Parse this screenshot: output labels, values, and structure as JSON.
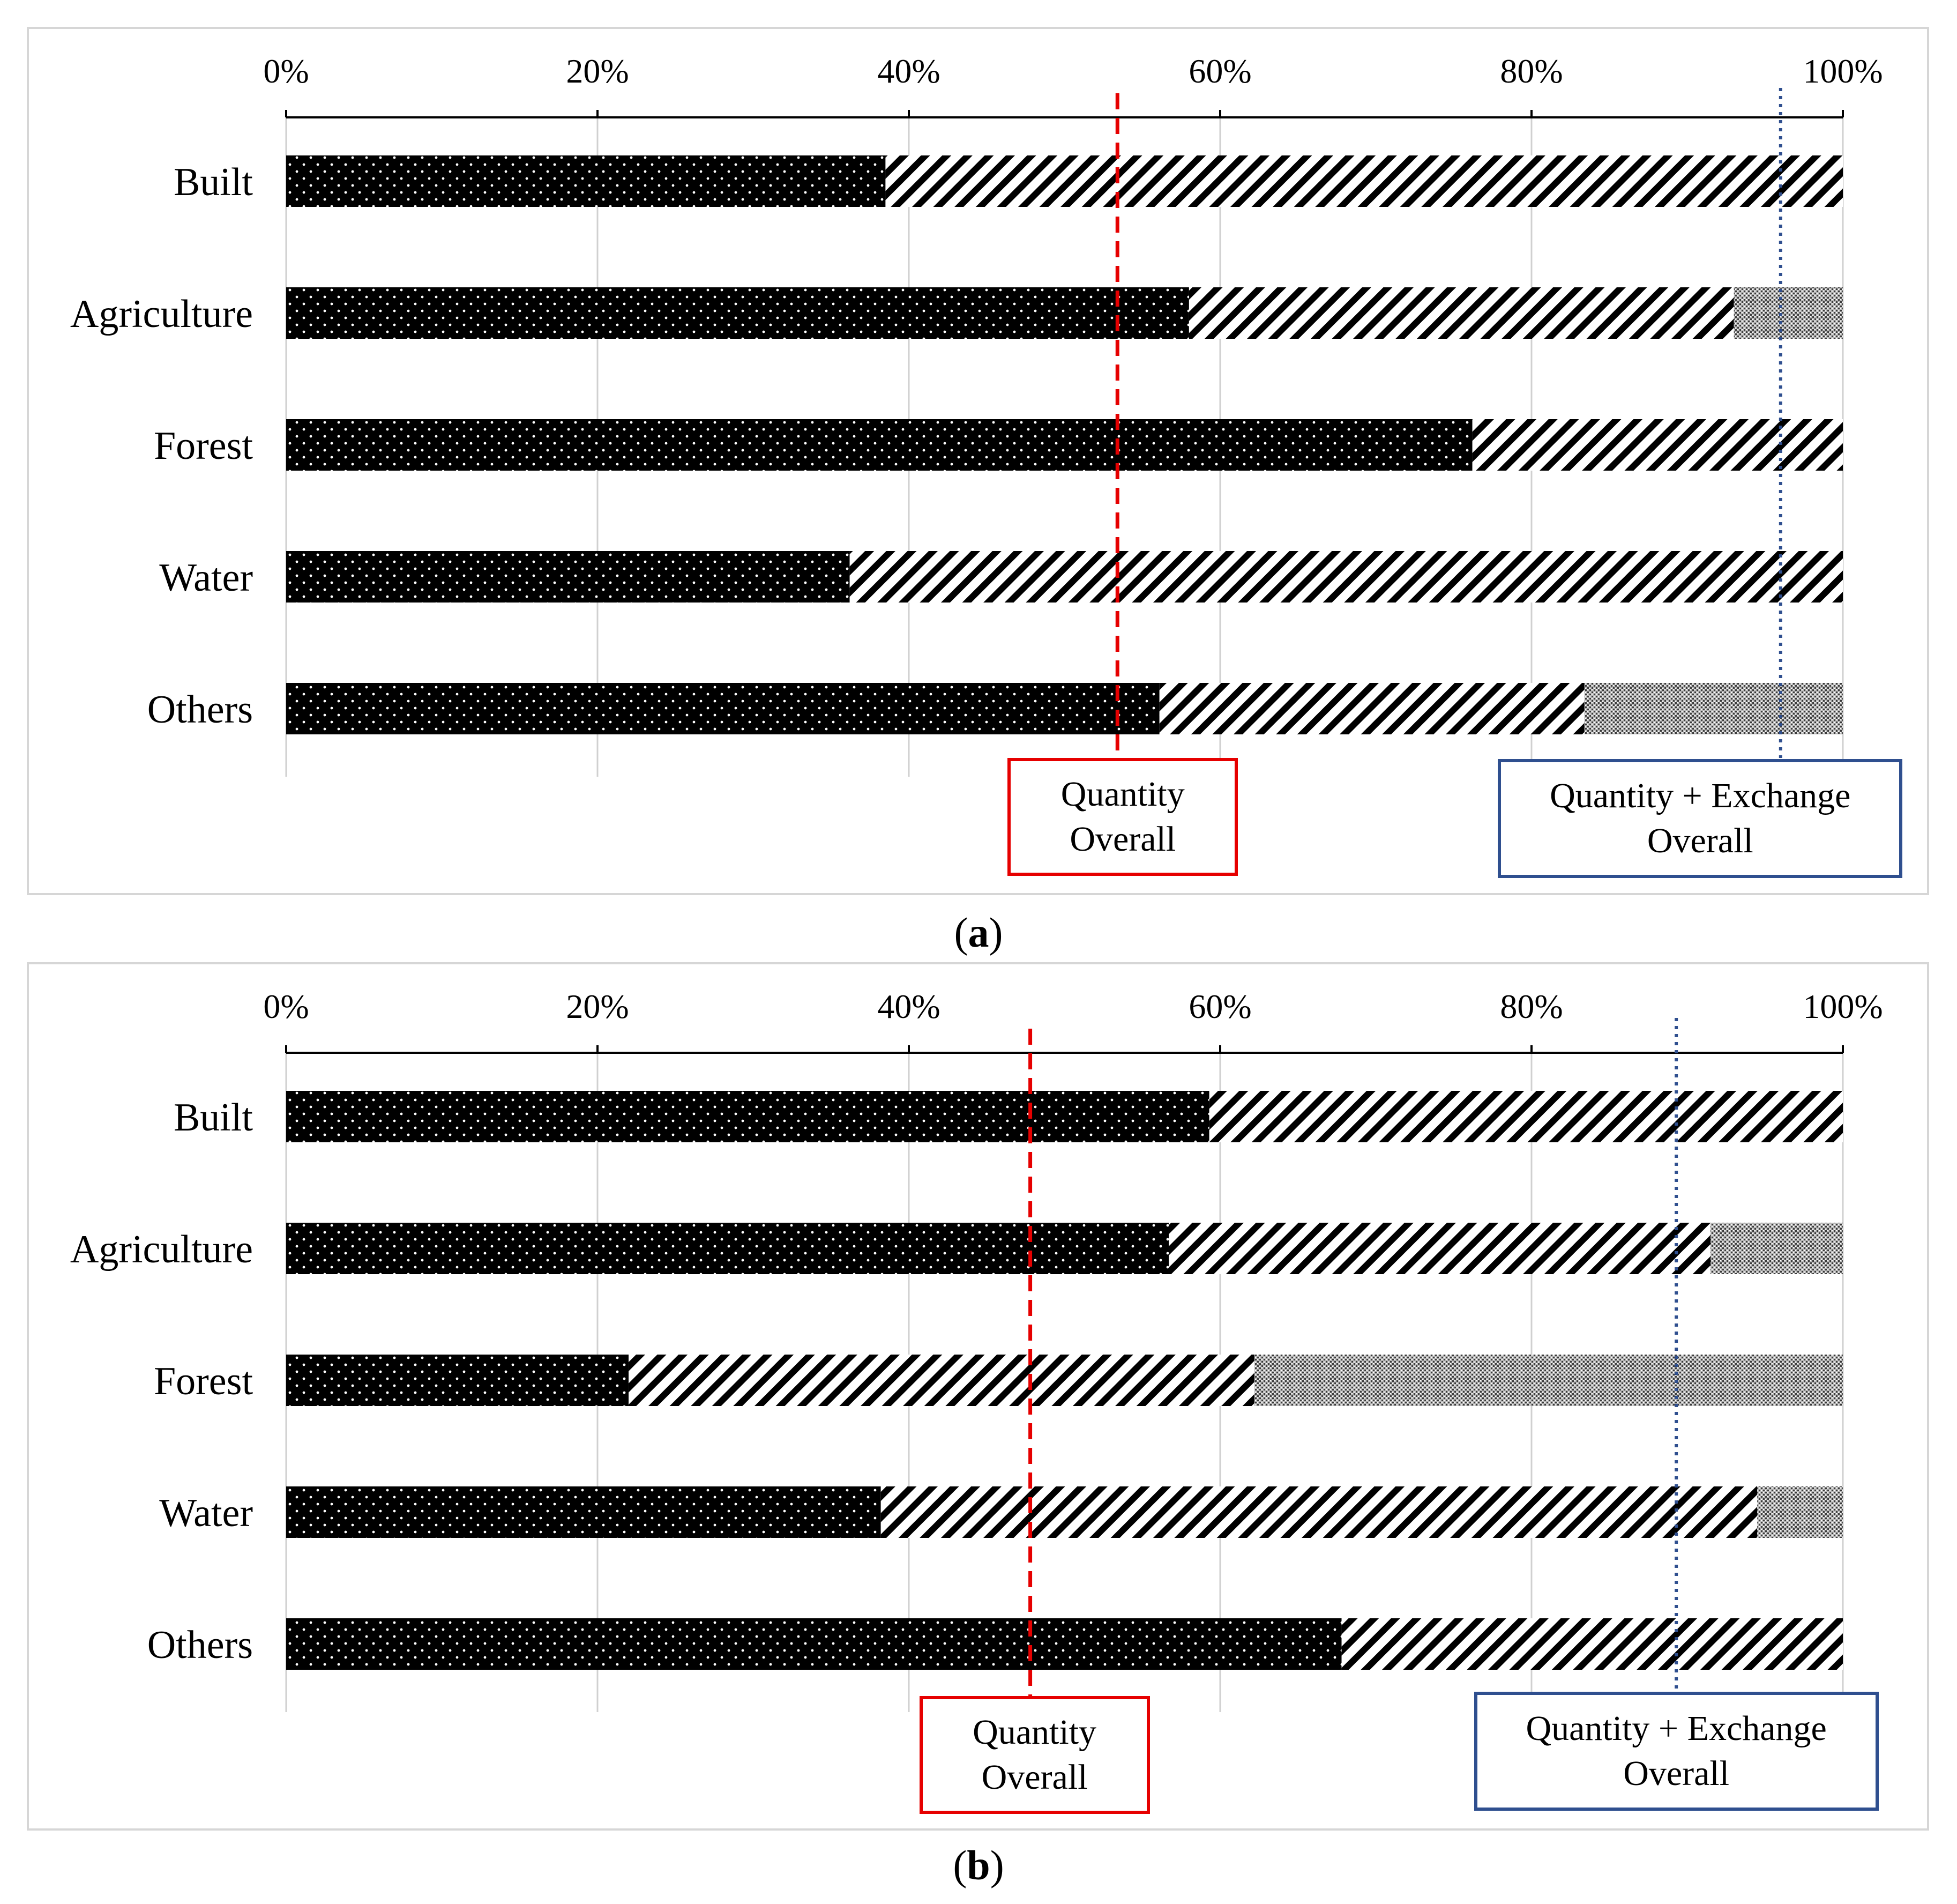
{
  "chart_data": [
    {
      "type": "bar",
      "orientation": "horizontal",
      "stacked": true,
      "caption_letter": "a",
      "categories": [
        "Built",
        "Agriculture",
        "Forest",
        "Water",
        "Others"
      ],
      "series": [
        {
          "values": [
            38.5,
            58.0,
            76.2,
            36.2,
            56.1
          ]
        },
        {
          "values": [
            61.5,
            35.0,
            23.8,
            63.8,
            27.3
          ]
        },
        {
          "values": [
            0,
            7.0,
            0,
            0,
            16.6
          ]
        }
      ],
      "xlim": [
        0,
        100
      ],
      "xticks": [
        "0%",
        "20%",
        "40%",
        "60%",
        "80%",
        "100%"
      ],
      "grid": true,
      "reference_lines": [
        {
          "label_line1": "Quantity",
          "label_line2": "Overall",
          "value": 53.4,
          "color": "#e60000",
          "style": "dashed"
        },
        {
          "label_line1": "Quantity + Exchange",
          "label_line2": "Overall",
          "value": 96.0,
          "color": "#2f4f8f",
          "style": "dotted"
        }
      ]
    },
    {
      "type": "bar",
      "orientation": "horizontal",
      "stacked": true,
      "caption_letter": "b",
      "categories": [
        "Built",
        "Agriculture",
        "Forest",
        "Water",
        "Others"
      ],
      "series": [
        {
          "values": [
            59.3,
            56.7,
            22.0,
            38.2,
            67.8
          ]
        },
        {
          "values": [
            40.7,
            34.8,
            40.2,
            56.3,
            32.2
          ]
        },
        {
          "values": [
            0,
            8.5,
            37.8,
            5.5,
            0
          ]
        }
      ],
      "xlim": [
        0,
        100
      ],
      "xticks": [
        "0%",
        "20%",
        "40%",
        "60%",
        "80%",
        "100%"
      ],
      "grid": true,
      "reference_lines": [
        {
          "label_line1": "Quantity",
          "label_line2": "Overall",
          "value": 47.8,
          "color": "#e60000",
          "style": "dashed"
        },
        {
          "label_line1": "Quantity + Exchange",
          "label_line2": "Overall",
          "value": 89.3,
          "color": "#2f4f8f",
          "style": "dotted"
        }
      ]
    }
  ]
}
